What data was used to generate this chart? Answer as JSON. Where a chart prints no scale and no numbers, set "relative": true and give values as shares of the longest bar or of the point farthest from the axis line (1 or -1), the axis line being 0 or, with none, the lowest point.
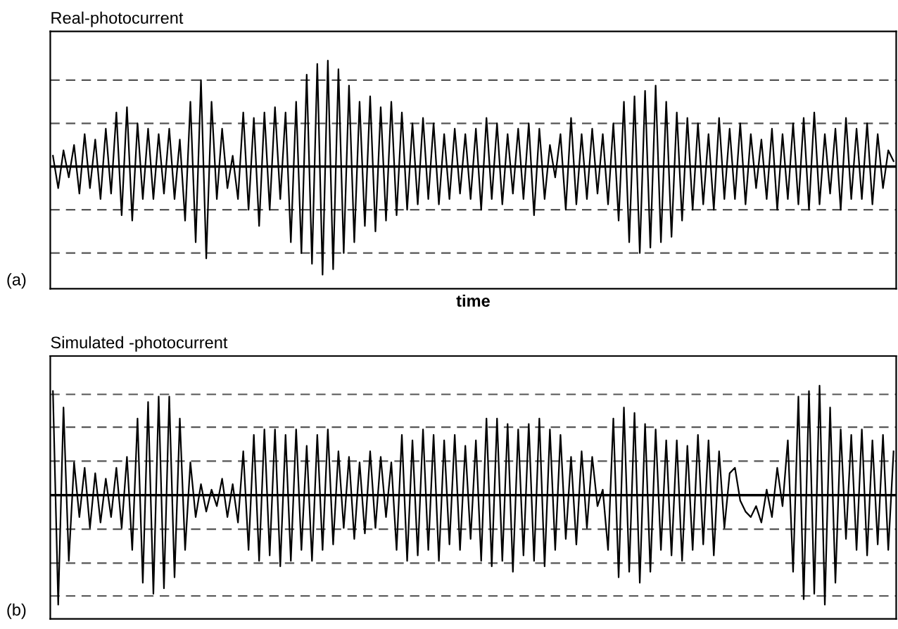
{
  "chart_data": [
    {
      "type": "line",
      "title": "Real-photocurrent",
      "xlabel": "time",
      "annotations": [
        "(a)"
      ],
      "relative": true,
      "tick_labels": false,
      "marker": "none",
      "line_style": "solid",
      "categories": [
        null,
        null,
        null,
        null,
        null,
        null,
        null,
        null,
        null,
        null,
        null,
        null,
        null,
        null,
        null,
        null,
        null,
        null,
        null,
        null,
        null,
        null,
        null,
        null,
        null,
        null,
        null,
        null,
        null,
        null,
        null,
        null,
        null,
        null,
        null,
        null,
        null,
        null,
        null,
        null,
        null,
        null,
        null,
        null,
        null,
        null,
        null,
        null,
        null,
        null,
        null,
        null,
        null,
        null,
        null,
        null,
        null,
        null,
        null,
        null,
        null,
        null,
        null,
        null,
        null,
        null,
        null,
        null,
        null,
        null,
        null,
        null,
        null,
        null,
        null,
        null,
        null,
        null,
        null,
        null,
        null,
        null,
        null,
        null,
        null,
        null,
        null,
        null,
        null,
        null,
        null,
        null,
        null,
        null,
        null,
        null,
        null,
        null,
        null,
        null,
        null,
        null,
        null,
        null,
        null,
        null,
        null,
        null,
        null,
        null,
        null,
        null,
        null,
        null,
        null,
        null,
        null,
        null,
        null,
        null,
        null,
        null,
        null,
        null,
        null,
        null,
        null,
        null,
        null,
        null,
        null,
        null,
        null,
        null,
        null,
        null,
        null,
        null,
        null,
        null,
        null,
        null,
        null,
        null,
        null,
        null,
        null,
        null,
        null,
        null,
        null,
        null,
        null,
        null,
        null,
        null,
        null,
        null,
        null,
        null
      ],
      "ref_lines": [
        {
          "axis": "y",
          "value": 0.8,
          "color": "#555555",
          "line_style": "dashed"
        },
        {
          "axis": "y",
          "value": 0.4,
          "color": "#555555",
          "line_style": "dashed"
        },
        {
          "axis": "y",
          "value": -0.4,
          "color": "#555555",
          "line_style": "dashed"
        },
        {
          "axis": "y",
          "value": -0.8,
          "color": "#555555",
          "line_style": "dashed"
        }
      ],
      "series": [
        {
          "color": "#000000",
          "values": [
            0.1,
            -0.2,
            0.15,
            -0.1,
            0.2,
            -0.25,
            0.3,
            -0.2,
            0.25,
            -0.3,
            0.35,
            -0.25,
            0.5,
            -0.45,
            0.55,
            -0.5,
            0.4,
            -0.3,
            0.35,
            -0.3,
            0.3,
            -0.25,
            0.35,
            -0.3,
            0.25,
            -0.5,
            0.6,
            -0.7,
            0.8,
            -0.85,
            0.6,
            -0.3,
            0.35,
            -0.2,
            0.1,
            -0.3,
            0.5,
            -0.4,
            0.45,
            -0.55,
            0.5,
            -0.4,
            0.55,
            -0.3,
            0.5,
            -0.7,
            0.6,
            -0.8,
            0.85,
            -0.9,
            0.95,
            -1.0,
            0.98,
            -0.95,
            0.9,
            -0.8,
            0.75,
            -0.7,
            0.6,
            -0.55,
            0.65,
            -0.6,
            0.55,
            -0.5,
            0.6,
            -0.45,
            0.5,
            -0.4,
            0.4,
            -0.35,
            0.45,
            -0.3,
            0.4,
            -0.35,
            0.3,
            -0.3,
            0.35,
            -0.25,
            0.3,
            -0.3,
            0.35,
            -0.4,
            0.45,
            -0.3,
            0.4,
            -0.35,
            0.3,
            -0.25,
            0.35,
            -0.3,
            0.4,
            -0.45,
            0.35,
            -0.3,
            0.2,
            -0.1,
            0.3,
            -0.4,
            0.45,
            -0.35,
            0.3,
            -0.3,
            0.35,
            -0.25,
            0.3,
            -0.35,
            0.4,
            -0.5,
            0.6,
            -0.7,
            0.65,
            -0.8,
            0.7,
            -0.75,
            0.75,
            -0.7,
            0.6,
            -0.65,
            0.5,
            -0.5,
            0.45,
            -0.4,
            0.4,
            -0.35,
            0.3,
            -0.4,
            0.45,
            -0.3,
            0.35,
            -0.3,
            0.4,
            -0.35,
            0.3,
            -0.2,
            0.25,
            -0.3,
            0.35,
            -0.4,
            0.3,
            -0.3,
            0.4,
            -0.35,
            0.45,
            -0.4,
            0.5,
            -0.35,
            0.3,
            -0.25,
            0.35,
            -0.4,
            0.45,
            -0.3,
            0.35,
            -0.3,
            0.4,
            -0.35,
            0.3,
            -0.2,
            0.15,
            0.05
          ]
        }
      ]
    },
    {
      "type": "line",
      "title": "Simulated -photocurrent",
      "annotations": [
        "(b)"
      ],
      "relative": true,
      "tick_labels": false,
      "marker": "none",
      "line_style": "solid",
      "categories": [
        null,
        null,
        null,
        null,
        null,
        null,
        null,
        null,
        null,
        null,
        null,
        null,
        null,
        null,
        null,
        null,
        null,
        null,
        null,
        null,
        null,
        null,
        null,
        null,
        null,
        null,
        null,
        null,
        null,
        null,
        null,
        null,
        null,
        null,
        null,
        null,
        null,
        null,
        null,
        null,
        null,
        null,
        null,
        null,
        null,
        null,
        null,
        null,
        null,
        null,
        null,
        null,
        null,
        null,
        null,
        null,
        null,
        null,
        null,
        null,
        null,
        null,
        null,
        null,
        null,
        null,
        null,
        null,
        null,
        null,
        null,
        null,
        null,
        null,
        null,
        null,
        null,
        null,
        null,
        null,
        null,
        null,
        null,
        null,
        null,
        null,
        null,
        null,
        null,
        null,
        null,
        null,
        null,
        null,
        null,
        null,
        null,
        null,
        null,
        null,
        null,
        null,
        null,
        null,
        null,
        null,
        null,
        null,
        null,
        null,
        null,
        null,
        null,
        null,
        null,
        null,
        null,
        null,
        null,
        null,
        null,
        null,
        null,
        null,
        null,
        null,
        null,
        null,
        null,
        null,
        null,
        null,
        null,
        null,
        null,
        null,
        null,
        null,
        null,
        null,
        null,
        null,
        null,
        null,
        null,
        null,
        null,
        null,
        null,
        null,
        null,
        null,
        null,
        null,
        null,
        null,
        null,
        null,
        null,
        null
      ],
      "ref_lines": [
        {
          "axis": "y",
          "value": 0.92,
          "color": "#555555",
          "line_style": "dashed"
        },
        {
          "axis": "y",
          "value": 0.62,
          "color": "#555555",
          "line_style": "dashed"
        },
        {
          "axis": "y",
          "value": 0.31,
          "color": "#555555",
          "line_style": "dashed"
        },
        {
          "axis": "y",
          "value": -0.31,
          "color": "#555555",
          "line_style": "dashed"
        },
        {
          "axis": "y",
          "value": -0.62,
          "color": "#555555",
          "line_style": "dashed"
        },
        {
          "axis": "y",
          "value": -0.92,
          "color": "#555555",
          "line_style": "dashed"
        }
      ],
      "series": [
        {
          "color": "#000000",
          "values": [
            0.95,
            -1.0,
            0.8,
            -0.6,
            0.3,
            -0.2,
            0.25,
            -0.3,
            0.2,
            -0.25,
            0.15,
            -0.2,
            0.25,
            -0.3,
            0.35,
            -0.5,
            0.7,
            -0.8,
            0.85,
            -0.9,
            0.9,
            -0.85,
            0.9,
            -0.75,
            0.7,
            -0.5,
            0.3,
            -0.2,
            0.1,
            -0.15,
            0.05,
            -0.1,
            0.15,
            -0.2,
            0.1,
            -0.25,
            0.4,
            -0.5,
            0.55,
            -0.6,
            0.6,
            -0.55,
            0.6,
            -0.65,
            0.55,
            -0.6,
            0.6,
            -0.5,
            0.45,
            -0.6,
            0.55,
            -0.5,
            0.6,
            -0.45,
            0.4,
            -0.3,
            0.35,
            -0.4,
            0.3,
            -0.35,
            0.4,
            -0.3,
            0.35,
            -0.2,
            0.3,
            -0.5,
            0.55,
            -0.6,
            0.5,
            -0.55,
            0.6,
            -0.5,
            0.55,
            -0.6,
            0.5,
            -0.45,
            0.55,
            -0.5,
            0.45,
            -0.4,
            0.5,
            -0.6,
            0.7,
            -0.65,
            0.7,
            -0.6,
            0.65,
            -0.7,
            0.6,
            -0.55,
            0.65,
            -0.6,
            0.7,
            -0.65,
            0.6,
            -0.5,
            0.55,
            -0.4,
            0.35,
            -0.45,
            0.4,
            -0.3,
            0.35,
            -0.1,
            0.05,
            -0.5,
            0.7,
            -0.75,
            0.8,
            -0.7,
            0.75,
            -0.8,
            0.65,
            -0.7,
            0.6,
            -0.5,
            0.5,
            -0.55,
            0.5,
            -0.6,
            0.45,
            -0.5,
            0.55,
            -0.45,
            0.5,
            -0.55,
            0.4,
            -0.3,
            0.2,
            0.25,
            -0.05,
            -0.15,
            -0.2,
            -0.1,
            -0.25,
            0.05,
            -0.2,
            0.25,
            -0.1,
            0.5,
            -0.7,
            0.9,
            -0.95,
            0.95,
            -0.9,
            1.0,
            -1.0,
            0.8,
            -0.8,
            0.6,
            -0.4,
            0.55,
            -0.5,
            0.6,
            -0.55,
            0.5,
            -0.45,
            0.55,
            -0.5,
            0.4
          ]
        }
      ]
    }
  ]
}
